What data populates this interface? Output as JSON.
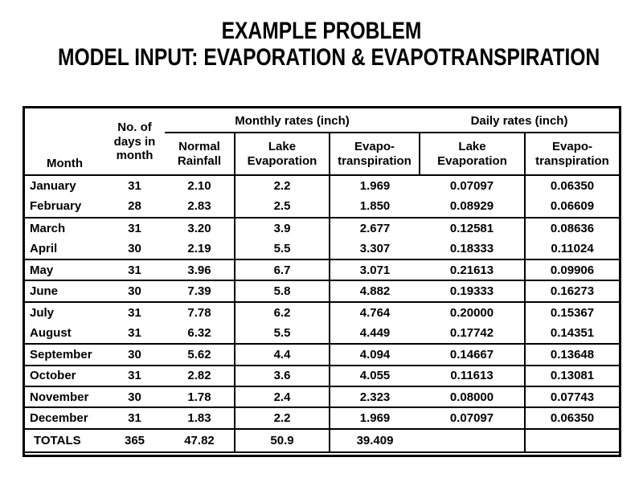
{
  "title": {
    "line1": "EXAMPLE PROBLEM",
    "line2": "MODEL INPUT: EVAPORATION & EVAPOTRANSPIRATION"
  },
  "table": {
    "corner_header": "Month",
    "days_header": "No. of\ndays in\nmonth",
    "group_monthly": "Monthly rates (inch)",
    "group_daily": "Daily rates (inch)",
    "sub_headers": [
      "Normal\nRainfall",
      "Lake\nEvaporation",
      "Evapo-\ntranspiration",
      "Lake\nEvaporation",
      "Evapo-\ntranspiration"
    ],
    "cell_names": [
      "month-cell",
      "days-cell",
      "normal-rainfall-cell",
      "lake-evaporation-monthly-cell",
      "evapotranspiration-monthly-cell",
      "lake-evaporation-daily-cell",
      "evapotranspiration-daily-cell"
    ]
  },
  "chart_data": {
    "type": "table",
    "title": "EXAMPLE PROBLEM — MODEL INPUT: EVAPORATION & EVAPOTRANSPIRATION",
    "column_groups": [
      {
        "label": "Monthly rates (inch)",
        "columns": [
          "Normal Rainfall",
          "Lake Evaporation",
          "Evapo-transpiration"
        ]
      },
      {
        "label": "Daily rates (inch)",
        "columns": [
          "Lake Evaporation",
          "Evapo-transpiration"
        ]
      }
    ],
    "columns": [
      "Month",
      "No. of days in month",
      "Normal Rainfall (monthly, inch)",
      "Lake Evaporation (monthly, inch)",
      "Evapo-transpiration (monthly, inch)",
      "Lake Evaporation (daily, inch)",
      "Evapo-transpiration (daily, inch)"
    ],
    "rows": [
      [
        "January",
        "31",
        "2.10",
        "2.2",
        "1.969",
        "0.07097",
        "0.06350"
      ],
      [
        "February",
        "28",
        "2.83",
        "2.5",
        "1.850",
        "0.08929",
        "0.06609"
      ],
      [
        "March",
        "31",
        "3.20",
        "3.9",
        "2.677",
        "0.12581",
        "0.08636"
      ],
      [
        "April",
        "30",
        "2.19",
        "5.5",
        "3.307",
        "0.18333",
        "0.11024"
      ],
      [
        "May",
        "31",
        "3.96",
        "6.7",
        "3.071",
        "0.21613",
        "0.09906"
      ],
      [
        "June",
        "30",
        "7.39",
        "5.8",
        "4.882",
        "0.19333",
        "0.16273"
      ],
      [
        "July",
        "31",
        "7.78",
        "6.2",
        "4.764",
        "0.20000",
        "0.15367"
      ],
      [
        "August",
        "31",
        "6.32",
        "5.5",
        "4.449",
        "0.17742",
        "0.14351"
      ],
      [
        "September",
        "30",
        "5.62",
        "4.4",
        "4.094",
        "0.14667",
        "0.13648"
      ],
      [
        "October",
        "31",
        "2.82",
        "3.6",
        "4.055",
        "0.11613",
        "0.13081"
      ],
      [
        "November",
        "30",
        "1.78",
        "2.4",
        "2.323",
        "0.08000",
        "0.07743"
      ],
      [
        "December",
        "31",
        "1.83",
        "2.2",
        "1.969",
        "0.07097",
        "0.06350"
      ]
    ],
    "totals_row": [
      "TOTALS",
      "365",
      "47.82",
      "50.9",
      "39.409",
      "",
      ""
    ],
    "separators_after": [
      "February",
      "April",
      "May",
      "June",
      "August",
      "September",
      "October",
      "November",
      "December"
    ],
    "layout": {
      "grid": "horizontal separators between month groups; vertical rules between rate columns; double rule at table bottom",
      "legend_position": "none"
    }
  },
  "colors": {
    "text": "#000000",
    "border": "#000000",
    "background": "#ffffff"
  }
}
